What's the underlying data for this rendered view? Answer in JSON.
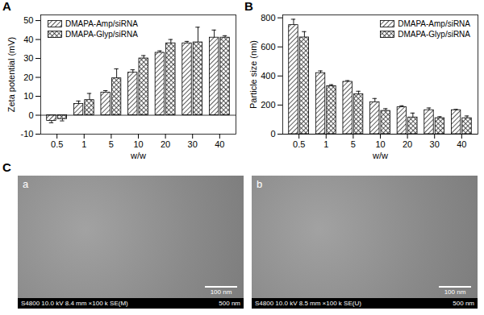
{
  "chart_data": [
    {
      "type": "bar",
      "panel_label": "A",
      "categories": [
        "0.5",
        "1",
        "5",
        "10",
        "20",
        "30",
        "40"
      ],
      "x_label": "w/w",
      "y_label": "Zeta potential (mV)",
      "series": [
        {
          "name": "DMAPA-Amp/siRNA",
          "color": "#333333",
          "values": [
            -3,
            6,
            12,
            22.5,
            33,
            38,
            41
          ],
          "errors": [
            1,
            1.5,
            1,
            1.5,
            1,
            1,
            4
          ]
        },
        {
          "name": "DMAPA-Glyp/siRNA",
          "color": "#333333",
          "values": [
            -2,
            8,
            19.5,
            30,
            38,
            38.5,
            41
          ],
          "errors": [
            1,
            3.5,
            5,
            1.5,
            2,
            8,
            1
          ]
        }
      ],
      "ylim": [
        -10,
        53
      ],
      "yticks": [
        -10,
        0,
        10,
        20,
        30,
        40,
        50
      ],
      "legend": "top-left"
    },
    {
      "type": "bar",
      "panel_label": "B",
      "categories": [
        "0.5",
        "1",
        "5",
        "10",
        "20",
        "30",
        "40"
      ],
      "x_label": "w/w",
      "y_label": "Particle size (nm)",
      "series": [
        {
          "name": "DMAPA-Amp/siRNA",
          "color": "#333333",
          "values": [
            750,
            420,
            360,
            220,
            185,
            165,
            165
          ],
          "errors": [
            40,
            15,
            8,
            25,
            10,
            15,
            5
          ]
        },
        {
          "name": "DMAPA-Glyp/siRNA",
          "color": "#333333",
          "values": [
            665,
            330,
            275,
            160,
            115,
            110,
            110
          ],
          "errors": [
            40,
            10,
            20,
            15,
            30,
            10,
            15
          ]
        }
      ],
      "ylim": [
        0,
        820
      ],
      "yticks": [
        0,
        200,
        400,
        600,
        800
      ],
      "legend": "top-right"
    }
  ],
  "figure_c": {
    "panel_label": "C",
    "images": [
      {
        "label": "a",
        "scale_bar": "100 nm",
        "info": "S4800 10.0 kV 8.4 mm ×100 k SE(M)",
        "field_width": "500 nm"
      },
      {
        "label": "b",
        "scale_bar": "100 nm",
        "info": "S4800 10.0 kV 8.5 mm ×100 k SE(U)",
        "field_width": "500 nm"
      }
    ]
  }
}
